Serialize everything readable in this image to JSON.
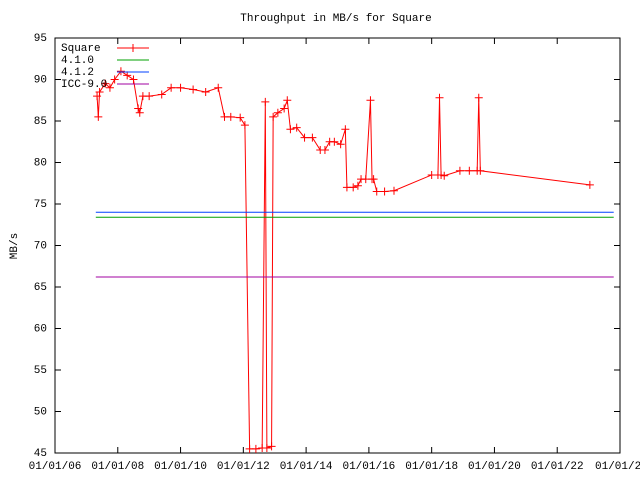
{
  "chart_data": {
    "type": "line",
    "title": "Throughput in MB/s for Square",
    "y_label": "MB/s",
    "xlim": [
      2006,
      2024
    ],
    "xticks": [
      {
        "value": 2006,
        "label": "01/01/06"
      },
      {
        "value": 2008,
        "label": "01/01/08"
      },
      {
        "value": 2010,
        "label": "01/01/10"
      },
      {
        "value": 2012,
        "label": "01/01/12"
      },
      {
        "value": 2014,
        "label": "01/01/14"
      },
      {
        "value": 2016,
        "label": "01/01/16"
      },
      {
        "value": 2018,
        "label": "01/01/18"
      },
      {
        "value": 2020,
        "label": "01/01/20"
      },
      {
        "value": 2022,
        "label": "01/01/22"
      },
      {
        "value": 2024,
        "label": "01/01/2"
      }
    ],
    "ylim": [
      45,
      95
    ],
    "yticks": [
      45,
      50,
      55,
      60,
      65,
      70,
      75,
      80,
      85,
      90,
      95
    ],
    "legend": "top-left",
    "series": [
      {
        "name": "Square",
        "color": "#ff0000",
        "markers": true,
        "x": [
          2007.34,
          2007.38,
          2007.42,
          2007.6,
          2007.75,
          2007.9,
          2008.1,
          2008.3,
          2008.5,
          2008.65,
          2008.7,
          2008.8,
          2009.0,
          2009.4,
          2009.7,
          2010.0,
          2010.4,
          2010.8,
          2011.2,
          2011.4,
          2011.6,
          2011.9,
          2012.05,
          2012.2,
          2012.4,
          2012.6,
          2012.7,
          2012.75,
          2012.9,
          2012.95,
          2013.1,
          2013.3,
          2013.4,
          2013.5,
          2013.7,
          2013.95,
          2014.2,
          2014.45,
          2014.6,
          2014.75,
          2014.9,
          2015.1,
          2015.25,
          2015.3,
          2015.5,
          2015.65,
          2015.75,
          2015.9,
          2016.05,
          2016.1,
          2016.15,
          2016.25,
          2016.5,
          2016.8,
          2018.0,
          2018.2,
          2018.25,
          2018.3,
          2018.4,
          2018.9,
          2019.2,
          2019.45,
          2019.5,
          2019.55,
          2023.04
        ],
        "values": [
          88,
          85.5,
          88.5,
          89.5,
          89,
          90,
          91,
          90.5,
          90,
          86.5,
          86,
          88,
          88,
          88.2,
          89,
          89,
          88.8,
          88.5,
          89,
          85.5,
          85.5,
          85.4,
          84.5,
          45.5,
          45.5,
          45.6,
          87.3,
          45.6,
          45.8,
          85.5,
          86,
          86.5,
          87.5,
          84,
          84.2,
          83,
          83,
          81.5,
          81.5,
          82.5,
          82.5,
          82.2,
          84,
          77,
          77,
          77.2,
          78,
          78,
          87.5,
          78,
          78,
          76.5,
          76.5,
          76.6,
          78.5,
          78.5,
          87.8,
          78.5,
          78.4,
          79,
          79,
          79,
          87.8,
          79,
          77.3
        ]
      },
      {
        "name": "4.1.0",
        "color": "#00a000",
        "markers": false,
        "x": [
          2007.3,
          2023.8
        ],
        "values": [
          73.4,
          73.4
        ]
      },
      {
        "name": "4.1.2",
        "color": "#0040ff",
        "markers": false,
        "x": [
          2007.3,
          2023.8
        ],
        "values": [
          74.0,
          74.0
        ]
      },
      {
        "name": "ICC-9.0",
        "color": "#a000a0",
        "markers": false,
        "x": [
          2007.3,
          2023.8
        ],
        "values": [
          66.2,
          66.2
        ]
      }
    ]
  }
}
